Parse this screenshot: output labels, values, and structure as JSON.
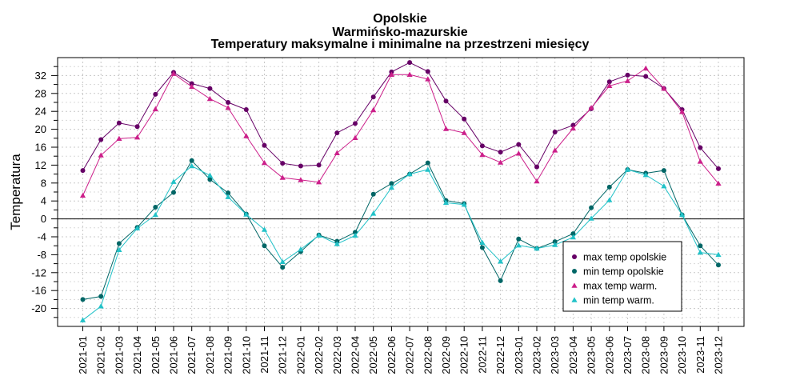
{
  "chart_data": {
    "type": "line",
    "title": [
      "Opolskie",
      "Warmińsko-mazurskie",
      "Temperatury maksymalne i minimalne na przestrzeni miesięcy"
    ],
    "xlabel": "",
    "ylabel": "Temperatura",
    "ylim": [
      -24,
      36
    ],
    "y_ticks": [
      -20,
      -16,
      -12,
      -8,
      -4,
      0,
      4,
      8,
      12,
      16,
      20,
      24,
      28,
      32
    ],
    "grid": true,
    "legend_position": "bottom-right",
    "categories": [
      "2021-01",
      "2021-02",
      "2021-03",
      "2021-04",
      "2021-05",
      "2021-06",
      "2021-07",
      "2021-08",
      "2021-09",
      "2021-10",
      "2021-11",
      "2021-12",
      "2022-01",
      "2022-02",
      "2022-03",
      "2022-04",
      "2022-05",
      "2022-06",
      "2022-07",
      "2022-08",
      "2022-09",
      "2022-10",
      "2022-11",
      "2022-12",
      "2023-01",
      "2023-02",
      "2023-03",
      "2023-04",
      "2023-05",
      "2023-06",
      "2023-07",
      "2023-08",
      "2023-09",
      "2023-10",
      "2023-11",
      "2023-12"
    ],
    "series": [
      {
        "name": "max temp opolskie",
        "color": "#660066",
        "marker": "circle",
        "values": [
          10.8,
          17.7,
          21.4,
          20.6,
          27.8,
          32.7,
          30.2,
          29.1,
          26.0,
          24.4,
          16.4,
          12.4,
          11.8,
          12.0,
          19.2,
          21.3,
          27.2,
          32.8,
          34.9,
          32.9,
          26.3,
          22.3,
          16.3,
          14.9,
          16.6,
          11.6,
          19.4,
          20.9,
          24.6,
          30.6,
          32.1,
          31.8,
          29.1,
          24.4,
          15.9,
          11.2
        ]
      },
      {
        "name": "min temp opolskie",
        "color": "#006666",
        "marker": "circle",
        "values": [
          -18.0,
          -17.3,
          -5.5,
          -1.9,
          2.6,
          5.9,
          13.0,
          8.8,
          5.8,
          1.1,
          -6.0,
          -10.8,
          -7.3,
          -3.6,
          -5.0,
          -3.0,
          5.5,
          7.9,
          10.0,
          12.5,
          4.1,
          3.4,
          -6.4,
          -13.8,
          -4.5,
          -6.6,
          -5.1,
          -3.3,
          2.5,
          7.1,
          11.0,
          10.2,
          10.8,
          0.9,
          -6.0,
          -10.3
        ]
      },
      {
        "name": "max temp warm.",
        "color": "#cc1f8a",
        "marker": "triangle",
        "values": [
          5.2,
          14.2,
          17.9,
          18.2,
          24.5,
          32.4,
          29.5,
          26.8,
          24.8,
          18.5,
          12.5,
          9.2,
          8.7,
          8.2,
          14.7,
          18.1,
          24.3,
          32.2,
          32.2,
          31.2,
          20.1,
          19.2,
          14.3,
          12.6,
          14.6,
          8.4,
          15.3,
          20.2,
          24.8,
          29.7,
          30.8,
          33.6,
          29.1,
          23.9,
          12.8,
          7.9
        ]
      },
      {
        "name": "min temp warm.",
        "color": "#22c2c8",
        "marker": "triangle",
        "values": [
          -22.6,
          -19.5,
          -6.9,
          -2.1,
          0.9,
          8.3,
          11.8,
          9.7,
          4.9,
          1.0,
          -2.4,
          -9.6,
          -6.8,
          -3.7,
          -5.6,
          -3.7,
          1.2,
          7.0,
          10.0,
          11.0,
          3.6,
          3.2,
          -5.3,
          -9.5,
          -5.9,
          -6.6,
          -5.8,
          -4.1,
          0.1,
          4.2,
          11.0,
          9.8,
          7.3,
          0.9,
          -7.5,
          -8.0
        ]
      }
    ],
    "reference_line": 0
  }
}
